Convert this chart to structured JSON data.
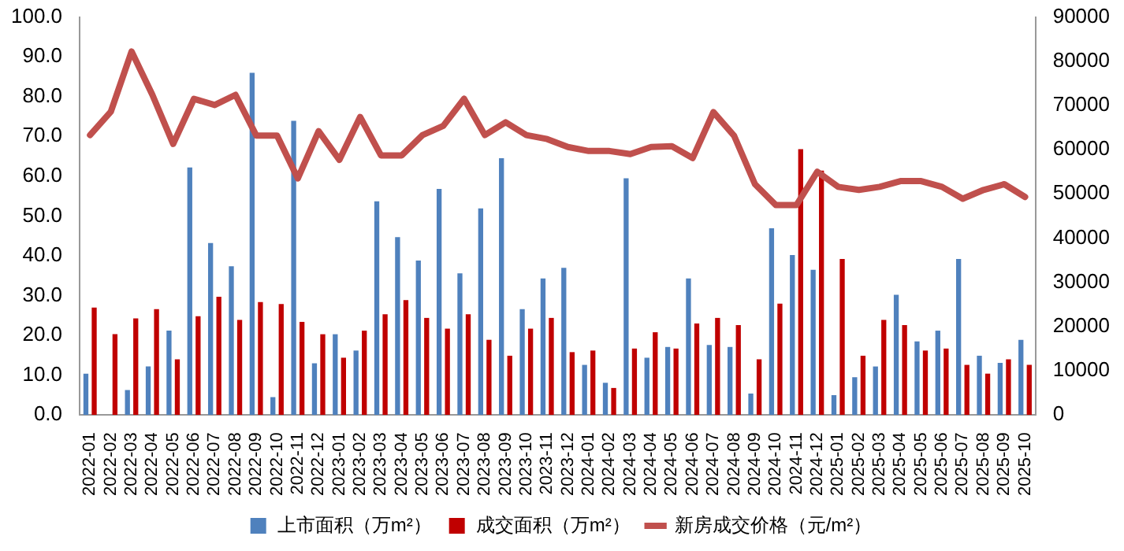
{
  "chart_data": {
    "type": "bar",
    "categories": [
      "2022-01",
      "2022-02",
      "2022-03",
      "2022-04",
      "2022-05",
      "2022-06",
      "2022-07",
      "2022-08",
      "2022-09",
      "2022-10",
      "2022-11",
      "2022-12",
      "2023-01",
      "2023-02",
      "2023-03",
      "2023-04",
      "2023-05",
      "2023-06",
      "2023-07",
      "2023-08",
      "2023-09",
      "2023-10",
      "2023-11",
      "2023-12",
      "2024-01",
      "2024-02",
      "2024-03",
      "2024-04",
      "2024-05",
      "2024-06",
      "2024-07",
      "2024-08",
      "2024-09",
      "2024-10",
      "2024-11",
      "2024-12",
      "2025-01",
      "2025-02",
      "2025-03",
      "2025-04",
      "2025-05",
      "2025-06",
      "2025-07",
      "2025-08",
      "2025-09",
      "2025-10"
    ],
    "series": [
      {
        "name": "上市面积（万m²）",
        "color": "#4f81bd",
        "values": [
          10.4,
          0,
          6.3,
          12.2,
          21.2,
          62.2,
          43.2,
          37.4,
          86.0,
          4.5,
          73.9,
          13.0,
          20.3,
          16.2,
          53.7,
          44.7,
          38.8,
          56.8,
          35.6,
          51.9,
          64.5,
          26.6,
          34.3,
          37.0,
          12.6,
          8.1,
          59.5,
          14.4,
          17.1,
          34.3,
          17.6,
          17.1,
          5.4,
          46.9,
          40.2,
          36.5,
          5.0,
          9.5,
          12.2,
          30.2,
          18.5,
          21.2,
          39.2,
          14.9,
          13.1,
          18.9
        ]
      },
      {
        "name": "成交面积（万m²）",
        "color": "#c00000",
        "values": [
          27.0,
          20.3,
          24.3,
          26.6,
          14.0,
          24.8,
          29.7,
          23.9,
          28.4,
          27.9,
          23.4,
          20.3,
          14.4,
          21.2,
          25.3,
          28.9,
          24.4,
          21.7,
          25.3,
          18.9,
          14.9,
          21.7,
          24.4,
          15.8,
          16.2,
          6.8,
          16.7,
          20.8,
          16.7,
          23.0,
          24.4,
          22.6,
          14.0,
          28.0,
          66.8,
          61.4,
          39.2,
          14.9,
          23.9,
          22.6,
          16.2,
          16.7,
          12.6,
          10.4,
          14.0,
          12.6
        ]
      },
      {
        "name": "新房成交价格（元/m²）",
        "type": "line",
        "axis": "y2",
        "color": "#c0504d",
        "values": [
          63300,
          68600,
          82200,
          72400,
          61300,
          71500,
          70100,
          72400,
          63200,
          63200,
          53500,
          64200,
          57700,
          67400,
          58700,
          58700,
          63300,
          65400,
          71500,
          63300,
          66200,
          63300,
          62400,
          60600,
          59700,
          59700,
          59000,
          60600,
          60800,
          58100,
          68500,
          63100,
          52200,
          47500,
          47500,
          55000,
          51600,
          50900,
          51600,
          52900,
          52900,
          51600,
          48900,
          50900,
          52200,
          49300
        ]
      }
    ],
    "ylim": [
      0,
      100
    ],
    "yticks": [
      {
        "value": 0,
        "label": "0.0"
      },
      {
        "value": 10,
        "label": "10.0"
      },
      {
        "value": 20,
        "label": "20.0"
      },
      {
        "value": 30,
        "label": "30.0"
      },
      {
        "value": 40,
        "label": "40.0"
      },
      {
        "value": 50,
        "label": "50.0"
      },
      {
        "value": 60,
        "label": "60.0"
      },
      {
        "value": 70,
        "label": "70.0"
      },
      {
        "value": 80,
        "label": "80.0"
      },
      {
        "value": 90,
        "label": "90.0"
      },
      {
        "value": 100,
        "label": "100.0"
      }
    ],
    "y2lim": [
      0,
      90000
    ],
    "y2ticks": [
      0,
      10000,
      20000,
      30000,
      40000,
      50000,
      60000,
      70000,
      80000,
      90000
    ],
    "grid": false,
    "legend": "bottom",
    "marker": "none"
  }
}
